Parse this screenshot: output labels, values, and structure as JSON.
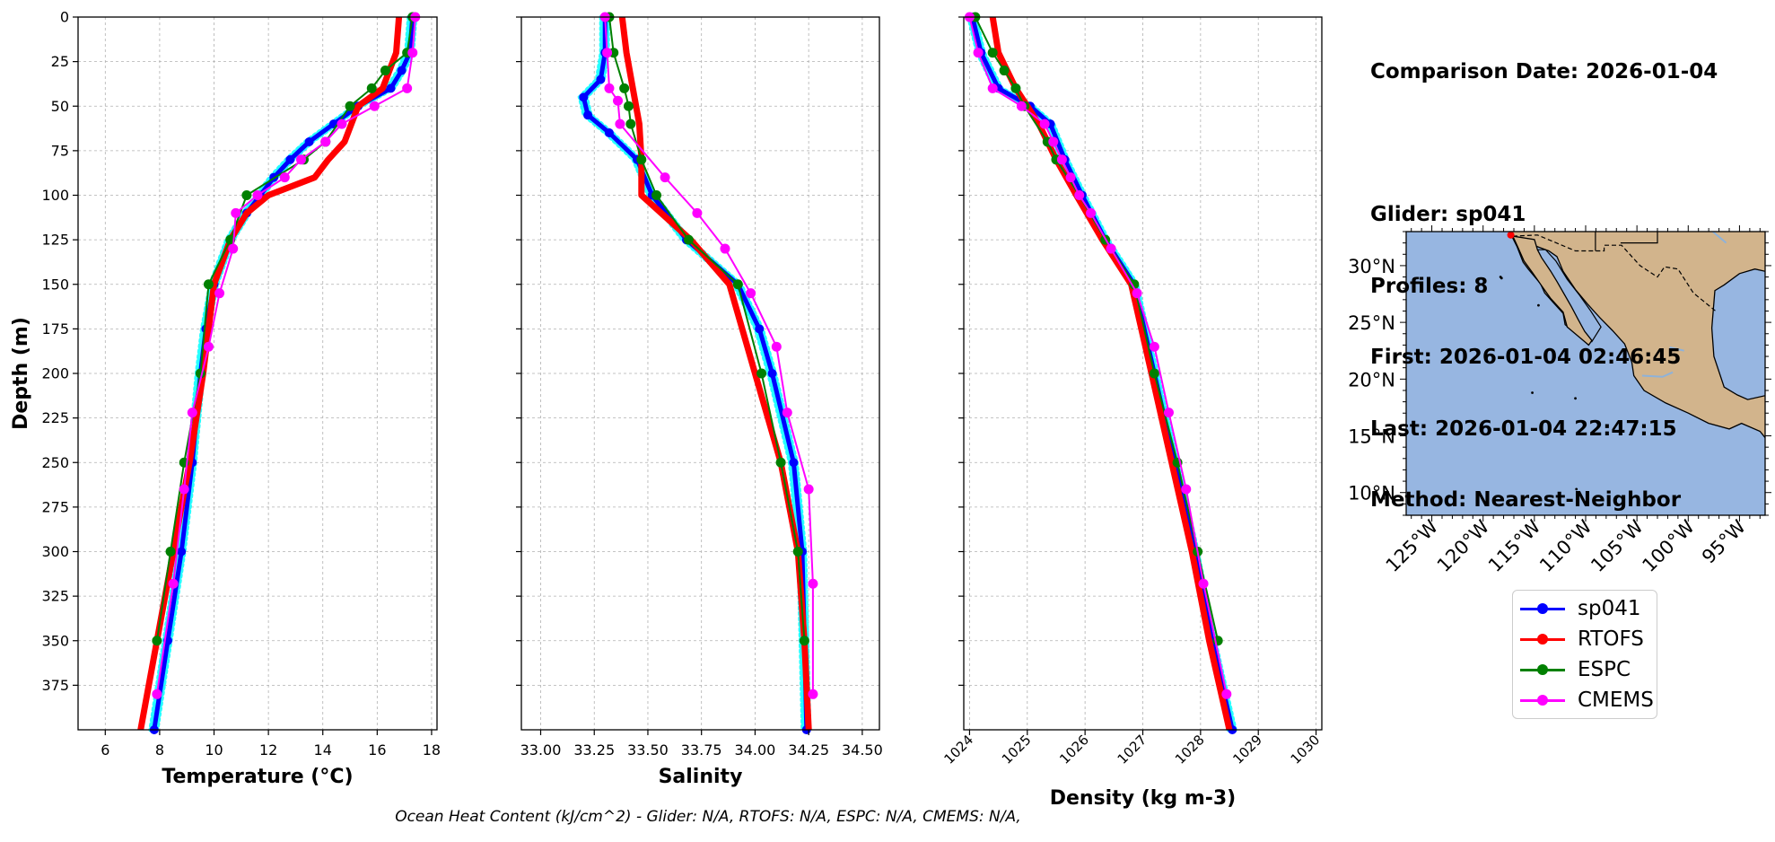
{
  "colors": {
    "sp041": "#0000ff",
    "sp041_raw": "#00ffff",
    "RTOFS": "#ff0000",
    "ESPC": "#008000",
    "CMEMS": "#ff00ff",
    "ocean": "#97b6e1",
    "land": "#d2b48c",
    "grid": "#b0b0b0"
  },
  "info": {
    "comparison": "Comparison Date: 2026-01-04",
    "glider": "Glider: sp041",
    "profiles": "Profiles: 8",
    "first": "First: 2026-01-04 02:46:45",
    "last": "Last: 2026-01-04 22:47:15",
    "method": "Method: Nearest-Neighbor"
  },
  "legend": [
    "sp041",
    "RTOFS",
    "ESPC",
    "CMEMS"
  ],
  "footer": "Ocean Heat Content (kJ/cm^2) - Glider: N/A,  RTOFS: N/A,  ESPC: N/A,  CMEMS: N/A,",
  "chart_data": [
    {
      "type": "line",
      "xlabel": "Temperature (°C)",
      "ylabel": "Depth (m)",
      "xlim": [
        5,
        18.2
      ],
      "ylim": [
        400,
        0
      ],
      "xticks": [
        6,
        8,
        10,
        12,
        14,
        16,
        18
      ],
      "yticks": [
        0,
        25,
        50,
        75,
        100,
        125,
        150,
        175,
        200,
        225,
        250,
        275,
        300,
        325,
        350,
        375
      ],
      "grid": true,
      "series": [
        {
          "name": "sp041",
          "depth": [
            0,
            20,
            30,
            40,
            50,
            60,
            70,
            80,
            90,
            100,
            110,
            125,
            150,
            175,
            200,
            250,
            300,
            350,
            400
          ],
          "values": [
            17.3,
            17.2,
            16.9,
            16.5,
            15.3,
            14.4,
            13.5,
            12.8,
            12.2,
            11.7,
            11.2,
            10.6,
            10.0,
            9.7,
            9.5,
            9.2,
            8.8,
            8.3,
            7.8
          ]
        },
        {
          "name": "RTOFS",
          "depth": [
            0,
            20,
            40,
            50,
            70,
            80,
            90,
            100,
            110,
            125,
            150,
            200,
            250,
            300,
            350,
            400
          ],
          "values": [
            16.8,
            16.7,
            16.2,
            15.3,
            14.8,
            14.2,
            13.7,
            12.0,
            11.2,
            10.6,
            10.0,
            9.6,
            9.1,
            8.5,
            7.9,
            7.3
          ]
        },
        {
          "name": "ESPC",
          "depth": [
            0,
            20,
            30,
            40,
            50,
            70,
            80,
            100,
            125,
            150,
            200,
            250,
            300,
            350
          ],
          "values": [
            17.3,
            17.1,
            16.3,
            15.8,
            15.0,
            14.1,
            13.3,
            11.2,
            10.6,
            9.8,
            9.5,
            8.9,
            8.4,
            7.9
          ]
        },
        {
          "name": "CMEMS",
          "depth": [
            0,
            20,
            40,
            50,
            60,
            70,
            80,
            90,
            100,
            110,
            130,
            155,
            185,
            222,
            265,
            318,
            380
          ],
          "values": [
            17.4,
            17.3,
            17.1,
            15.9,
            14.7,
            14.1,
            13.2,
            12.6,
            11.6,
            10.8,
            10.7,
            10.2,
            9.8,
            9.2,
            8.9,
            8.5,
            7.9
          ]
        }
      ]
    },
    {
      "type": "line",
      "xlabel": "Salinity",
      "xlim": [
        32.91,
        34.58
      ],
      "ylim": [
        400,
        0
      ],
      "xticks": [
        33.0,
        33.25,
        33.5,
        33.75,
        34.0,
        34.25,
        34.5
      ],
      "xtick_labels": [
        "33.00",
        "33.25",
        "33.50",
        "33.75",
        "34.00",
        "34.25",
        "34.50"
      ],
      "grid": true,
      "series": [
        {
          "name": "sp041",
          "depth": [
            0,
            20,
            35,
            45,
            55,
            65,
            80,
            100,
            125,
            150,
            175,
            200,
            250,
            300,
            350,
            400
          ],
          "values": [
            33.3,
            33.3,
            33.28,
            33.2,
            33.22,
            33.32,
            33.45,
            33.52,
            33.68,
            33.92,
            34.02,
            34.08,
            34.18,
            34.22,
            34.23,
            34.24
          ]
        },
        {
          "name": "RTOFS",
          "depth": [
            0,
            20,
            40,
            60,
            80,
            100,
            125,
            150,
            200,
            250,
            300,
            350,
            400
          ],
          "values": [
            33.38,
            33.4,
            33.43,
            33.46,
            33.47,
            33.47,
            33.7,
            33.88,
            34.0,
            34.12,
            34.2,
            34.23,
            34.25
          ]
        },
        {
          "name": "ESPC",
          "depth": [
            0,
            20,
            40,
            50,
            60,
            80,
            100,
            125,
            150,
            200,
            250,
            300,
            350
          ],
          "values": [
            33.32,
            33.34,
            33.39,
            33.41,
            33.42,
            33.47,
            33.54,
            33.69,
            33.92,
            34.03,
            34.12,
            34.2,
            34.23
          ]
        },
        {
          "name": "CMEMS",
          "depth": [
            0,
            20,
            40,
            47,
            60,
            90,
            110,
            130,
            155,
            185,
            222,
            265,
            318,
            380
          ],
          "values": [
            33.3,
            33.31,
            33.32,
            33.36,
            33.37,
            33.58,
            33.73,
            33.86,
            33.98,
            34.1,
            34.15,
            34.25,
            34.27,
            34.27
          ]
        }
      ]
    },
    {
      "type": "line",
      "xlabel": "Density (kg m-3)",
      "xlim": [
        1023.9,
        1030.1
      ],
      "ylim": [
        400,
        0
      ],
      "xticks": [
        1024,
        1025,
        1026,
        1027,
        1028,
        1029,
        1030
      ],
      "grid": true,
      "series": [
        {
          "name": "sp041",
          "depth": [
            0,
            20,
            40,
            50,
            60,
            80,
            100,
            125,
            150,
            200,
            250,
            300,
            350,
            400
          ],
          "values": [
            1024.05,
            1024.2,
            1024.5,
            1025.05,
            1025.4,
            1025.65,
            1025.95,
            1026.35,
            1026.85,
            1027.2,
            1027.55,
            1027.9,
            1028.2,
            1028.55
          ]
        },
        {
          "name": "RTOFS",
          "depth": [
            0,
            20,
            40,
            60,
            80,
            100,
            125,
            150,
            200,
            250,
            300,
            350,
            400
          ],
          "values": [
            1024.4,
            1024.5,
            1024.8,
            1025.2,
            1025.5,
            1025.85,
            1026.3,
            1026.8,
            1027.15,
            1027.5,
            1027.85,
            1028.15,
            1028.5
          ]
        },
        {
          "name": "ESPC",
          "depth": [
            0,
            20,
            30,
            40,
            50,
            70,
            80,
            100,
            125,
            150,
            200,
            250,
            300,
            350
          ],
          "values": [
            1024.1,
            1024.4,
            1024.6,
            1024.8,
            1024.95,
            1025.35,
            1025.5,
            1025.9,
            1026.35,
            1026.85,
            1027.2,
            1027.6,
            1027.95,
            1028.3
          ]
        },
        {
          "name": "CMEMS",
          "depth": [
            0,
            20,
            40,
            50,
            60,
            70,
            80,
            90,
            100,
            110,
            130,
            155,
            185,
            222,
            265,
            318,
            380
          ],
          "values": [
            1024.0,
            1024.15,
            1024.4,
            1024.9,
            1025.3,
            1025.45,
            1025.6,
            1025.75,
            1025.9,
            1026.1,
            1026.45,
            1026.9,
            1027.2,
            1027.45,
            1027.75,
            1028.05,
            1028.45
          ]
        }
      ]
    },
    {
      "type": "map",
      "lon_range": [
        -127.5,
        -92.5
      ],
      "lat_range": [
        8,
        33
      ],
      "lon_ticks": [
        -125,
        -120,
        -115,
        -110,
        -105,
        -100,
        -95
      ],
      "lon_tick_labels": [
        "125°W",
        "120°W",
        "115°W",
        "110°W",
        "105°W",
        "100°W",
        "95°W"
      ],
      "lat_ticks": [
        30,
        25,
        20,
        15,
        10
      ],
      "lat_tick_labels": [
        "30°N",
        "25°N",
        "20°N",
        "15°N",
        "10°N"
      ],
      "glider_marker": {
        "lon": -117.3,
        "lat": 32.7
      }
    }
  ]
}
